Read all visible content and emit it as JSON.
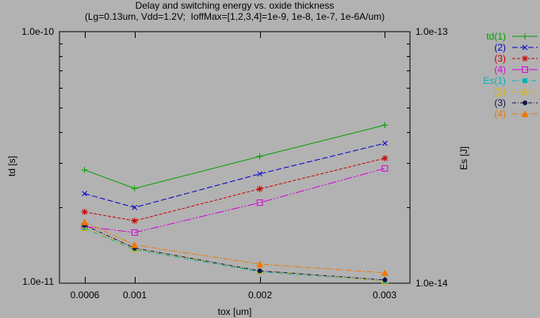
{
  "chart_data": {
    "type": "line",
    "title": "Delay and switching energy vs. oxide thickness",
    "subtitle": "(Lg=0.13um, Vdd=1.2V;  IoffMax=[1,2,3,4]=1e-9, 1e-8, 1e-7, 1e-6A/um)",
    "xlabel": "tox [um]",
    "ylabel_left": "td [s]",
    "ylabel_right": "Es [J]",
    "x_scale": "linear",
    "x_range": [
      0.0004,
      0.0032
    ],
    "x_ticks": [
      {
        "value": 0.0006,
        "label": "0.0006"
      },
      {
        "value": 0.001,
        "label": "0.001"
      },
      {
        "value": 0.002,
        "label": "0.002"
      },
      {
        "value": 0.003,
        "label": "0.003"
      }
    ],
    "y_left": {
      "scale": "log",
      "range": [
        1e-11,
        1e-10
      ],
      "top_label": "1.0e-10",
      "bottom_label": "1.0e-11"
    },
    "y_right": {
      "scale": "log",
      "range": [
        1e-14,
        1e-13
      ],
      "top_label": "1.0e-13",
      "bottom_label": "1.0e-14"
    },
    "grid": false,
    "legend_position": "outside-right",
    "x": [
      0.0006,
      0.001,
      0.002,
      0.003
    ],
    "series": [
      {
        "name": "td(1)",
        "axis": "left",
        "color": "#00a000",
        "marker": "plus",
        "dash": "solid",
        "values": [
          2.82e-11,
          2.38e-11,
          3.19e-11,
          4.25e-11
        ]
      },
      {
        "name": "(2)",
        "axis": "left",
        "color": "#0000c8",
        "marker": "cross",
        "dash": "dash",
        "values": [
          2.27e-11,
          2e-11,
          2.72e-11,
          3.6e-11
        ]
      },
      {
        "name": "(3)",
        "axis": "left",
        "color": "#c80000",
        "marker": "asterisk",
        "dash": "shortdash",
        "values": [
          1.92e-11,
          1.77e-11,
          2.37e-11,
          3.14e-11
        ]
      },
      {
        "name": "(4)",
        "axis": "left",
        "color": "#d800d8",
        "marker": "open-square",
        "dash": "longdashdotdot",
        "values": [
          1.68e-11,
          1.59e-11,
          2.09e-11,
          2.86e-11
        ]
      },
      {
        "name": "Es(1)",
        "axis": "right",
        "color": "#00b4b4",
        "marker": "filled-square",
        "dash": "dashdot",
        "values": [
          1.65e-14,
          1.36e-14,
          1.11e-14,
          1.02e-14
        ]
      },
      {
        "name": "(2)",
        "axis": "right",
        "color": "#dcb400",
        "marker": "open-triangle",
        "dash": "dashdotfine",
        "values": [
          1.66e-14,
          1.37e-14,
          1.12e-14,
          1.02e-14
        ]
      },
      {
        "name": "(3)",
        "axis": "right",
        "color": "#141446",
        "marker": "filled-circle",
        "dash": "dashdotsmall",
        "values": [
          1.7e-14,
          1.38e-14,
          1.12e-14,
          1.03e-14
        ]
      },
      {
        "name": "(4)",
        "axis": "right",
        "color": "#f07800",
        "marker": "filled-triangle",
        "dash": "dashdotdot",
        "values": [
          1.75e-14,
          1.42e-14,
          1.19e-14,
          1.1e-14
        ]
      }
    ],
    "colors": {
      "background": "#b2b2b2",
      "axis": "#000000"
    }
  }
}
